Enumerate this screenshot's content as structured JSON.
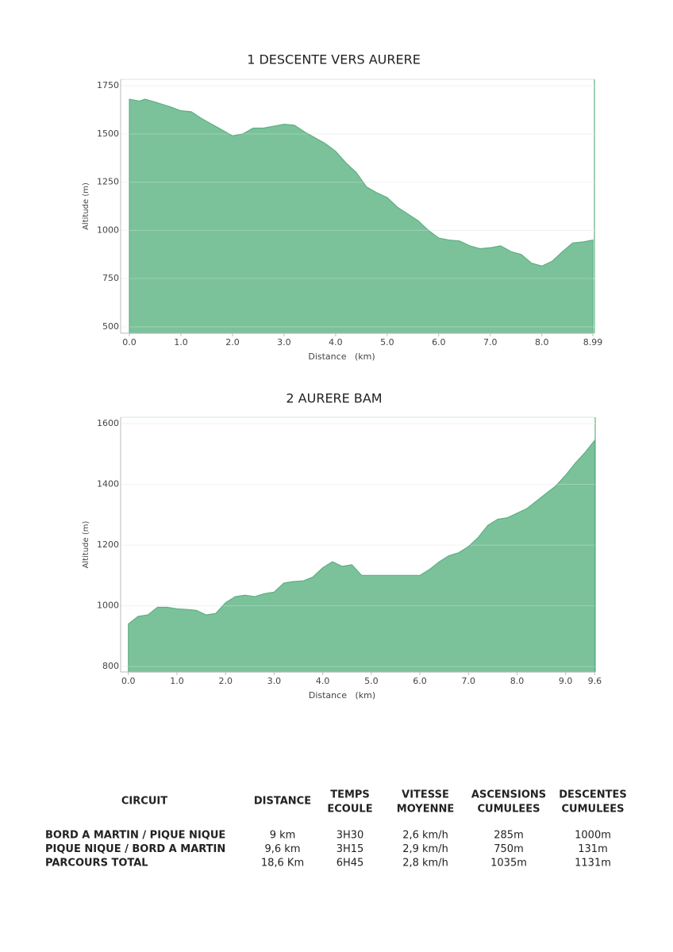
{
  "chart_data": [
    {
      "type": "area",
      "title": "1 DESCENTE VERS AURERE",
      "x_label": "Distance   (km)",
      "y_label": "Altitude (m)",
      "color": "#7bc29b",
      "line_color": "#5fae84",
      "grid": true,
      "x": [
        0,
        0.2,
        0.3,
        0.5,
        0.8,
        1.0,
        1.2,
        1.4,
        1.6,
        1.8,
        2.0,
        2.2,
        2.4,
        2.6,
        2.8,
        3.0,
        3.2,
        3.4,
        3.6,
        3.8,
        4.0,
        4.2,
        4.4,
        4.6,
        4.8,
        5.0,
        5.2,
        5.4,
        5.6,
        5.8,
        6.0,
        6.2,
        6.4,
        6.6,
        6.8,
        7.0,
        7.2,
        7.4,
        7.6,
        7.8,
        8.0,
        8.2,
        8.4,
        8.6,
        8.8,
        8.99
      ],
      "values": [
        1680,
        1670,
        1680,
        1665,
        1640,
        1620,
        1615,
        1580,
        1550,
        1520,
        1490,
        1500,
        1530,
        1530,
        1540,
        1550,
        1545,
        1510,
        1480,
        1450,
        1410,
        1350,
        1300,
        1225,
        1195,
        1170,
        1120,
        1085,
        1050,
        1000,
        960,
        950,
        945,
        920,
        905,
        910,
        920,
        890,
        875,
        830,
        815,
        840,
        890,
        935,
        940,
        950
      ],
      "xlim": [
        -0.17,
        9.02
      ],
      "ylim": [
        467,
        1783
      ],
      "xticks": [
        {
          "value": 0,
          "label": "0.0"
        },
        {
          "value": 1,
          "label": "1.0"
        },
        {
          "value": 2,
          "label": "2.0"
        },
        {
          "value": 3,
          "label": "3.0"
        },
        {
          "value": 4,
          "label": "4.0"
        },
        {
          "value": 5,
          "label": "5.0"
        },
        {
          "value": 6,
          "label": "6.0"
        },
        {
          "value": 7,
          "label": "7.0"
        },
        {
          "value": 8,
          "label": "8.0"
        },
        8.99
      ],
      "yticks": [
        500,
        750,
        1000,
        1250,
        1500,
        1750
      ]
    },
    {
      "type": "area",
      "title": "2 AURERE BAM",
      "x_label": "Distance   (km)",
      "y_label": "Altitude (m)",
      "color": "#7bc29b",
      "line_color": "#5fae84",
      "grid": true,
      "x": [
        0,
        0.2,
        0.4,
        0.6,
        0.8,
        1.0,
        1.2,
        1.4,
        1.6,
        1.8,
        2.0,
        2.2,
        2.4,
        2.6,
        2.8,
        3.0,
        3.2,
        3.4,
        3.6,
        3.8,
        4.0,
        4.2,
        4.4,
        4.6,
        4.8,
        5.0,
        5.4,
        5.8,
        6.0,
        6.2,
        6.4,
        6.6,
        6.8,
        7.0,
        7.2,
        7.4,
        7.6,
        7.8,
        8.0,
        8.2,
        8.4,
        8.6,
        8.8,
        9.0,
        9.2,
        9.4,
        9.6
      ],
      "values": [
        940,
        965,
        970,
        995,
        995,
        990,
        988,
        985,
        970,
        975,
        1010,
        1030,
        1035,
        1030,
        1040,
        1045,
        1075,
        1080,
        1082,
        1095,
        1125,
        1145,
        1130,
        1135,
        1100,
        1100,
        1100,
        1100,
        1100,
        1120,
        1145,
        1165,
        1175,
        1195,
        1225,
        1265,
        1285,
        1290,
        1305,
        1320,
        1345,
        1370,
        1395,
        1430,
        1470,
        1505,
        1545
      ],
      "xlim": [
        -0.16,
        9.61
      ],
      "ylim": [
        782,
        1621
      ],
      "xticks": [
        {
          "value": 0,
          "label": "0.0"
        },
        {
          "value": 1,
          "label": "1.0"
        },
        {
          "value": 2,
          "label": "2.0"
        },
        {
          "value": 3,
          "label": "3.0"
        },
        {
          "value": 4,
          "label": "4.0"
        },
        {
          "value": 5,
          "label": "5.0"
        },
        {
          "value": 6,
          "label": "6.0"
        },
        {
          "value": 7,
          "label": "7.0"
        },
        {
          "value": 8,
          "label": "8.0"
        },
        {
          "value": 9,
          "label": "9.0"
        },
        9.6
      ],
      "yticks": [
        800,
        1000,
        1200,
        1400,
        1600
      ]
    }
  ],
  "table": {
    "header": [
      [
        "CIRCUIT"
      ],
      [
        "DISTANCE"
      ],
      [
        "TEMPS",
        "ECOULE"
      ],
      [
        "VITESSE",
        "MOYENNE"
      ],
      [
        "ASCENSIONS",
        "CUMULEES"
      ],
      [
        "DESCENTES",
        "CUMULEES"
      ]
    ],
    "rows": [
      [
        "BORD A MARTIN / PIQUE NIQUE",
        "9 km",
        "3H30",
        "2,6 km/h",
        "285m",
        "1000m"
      ],
      [
        "PIQUE NIQUE / BORD A MARTIN",
        "9,6 km",
        "3H15",
        "2,9 km/h",
        "750m",
        "131m"
      ],
      [
        "PARCOURS TOTAL",
        "18,6 Km",
        "6H45",
        "2,8 km/h",
        "1035m",
        "1131m"
      ]
    ]
  }
}
